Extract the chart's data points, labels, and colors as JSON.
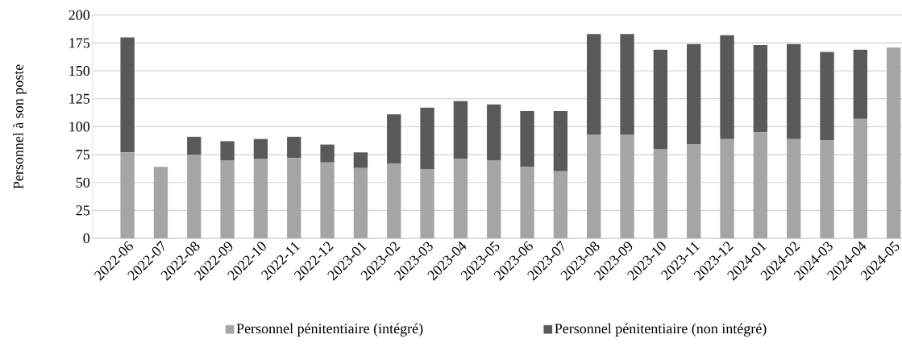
{
  "chart_data": {
    "type": "bar",
    "stacked": true,
    "ylabel": "Personnel à son poste",
    "categories": [
      "2022-06",
      "2022-07",
      "2022-08",
      "2022-09",
      "2022-10",
      "2022-11",
      "2022-12",
      "2023-01",
      "2023-02",
      "2023-03",
      "2023-04",
      "2023-05",
      "2023-06",
      "2023-07",
      "2023-08",
      "2023-09",
      "2023-10",
      "2023-11",
      "2023-12",
      "2024-01",
      "2024-02",
      "2024-03",
      "2024-04",
      "2024-05"
    ],
    "series": [
      {
        "name": "Personnel pénitentiaire (intégré)",
        "color": "#a5a5a5",
        "values": [
          77,
          64,
          75,
          70,
          71,
          72,
          68,
          63,
          67,
          62,
          71,
          70,
          64,
          60,
          93,
          93,
          80,
          84,
          89,
          95,
          89,
          88,
          107,
          171
        ]
      },
      {
        "name": "Personnel pénitentiaire (non intégré)",
        "color": "#595959",
        "values": [
          103,
          null,
          16,
          17,
          18,
          19,
          16,
          14,
          44,
          55,
          52,
          50,
          50,
          54,
          90,
          90,
          89,
          90,
          93,
          78,
          85,
          79,
          62,
          null
        ]
      }
    ],
    "ylim": [
      0,
      200
    ],
    "yticks": [
      0,
      25,
      50,
      75,
      100,
      125,
      150,
      175,
      200
    ],
    "grid": "y",
    "legend": "bottom"
  }
}
